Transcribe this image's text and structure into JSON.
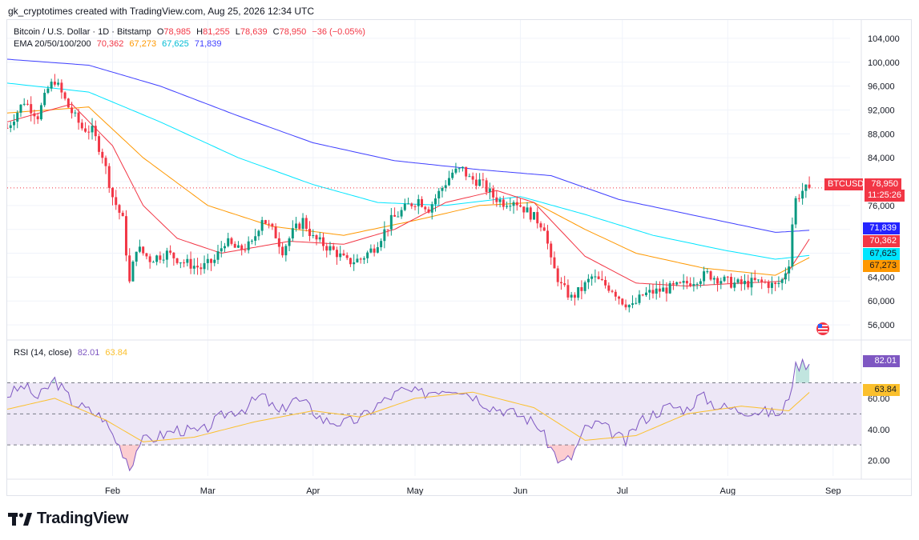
{
  "header": {
    "attribution": "gk_cryptotimes created with TradingView.com, Aug 25, 2026 12:34 UTC"
  },
  "legend": {
    "symbol": "Bitcoin / U.S. Dollar · 1D · Bitstamp",
    "o_label": "O",
    "o_value": "78,985",
    "h_label": "H",
    "h_value": "81,255",
    "l_label": "L",
    "l_value": "78,639",
    "c_label": "C",
    "c_value": "78,950",
    "change": "−36 (−0.05%)",
    "ema_label": "EMA 20/50/100/200",
    "ema20": "70,362",
    "ema50": "67,273",
    "ema100": "67,625",
    "ema200": "71,839",
    "rsi_label": "RSI (14, close)",
    "rsi_value": "82.01",
    "rsi_ma": "63.84"
  },
  "tags": {
    "symbol": "BTCUSD",
    "price": "78,950",
    "countdown": "11:25:26",
    "ema200": "71,839",
    "ema20": "70,362",
    "ema100": "67,625",
    "ema50": "67,273",
    "rsi": "82.01",
    "rsi_ma": "63.84"
  },
  "colors": {
    "up": "#089981",
    "down": "#f23645",
    "ema20": "#f23645",
    "ema50": "#ff9800",
    "ema100": "#00e5ff",
    "ema200": "#3f3fff",
    "rsi": "#7e57c2",
    "rsi_ma": "#fbc02d",
    "rsi_band": "#ede7f6"
  },
  "logo": {
    "text": "TradingView"
  },
  "chart_data": [
    {
      "type": "candlestick",
      "title": "Bitcoin / U.S. Dollar · 1D · Bitstamp",
      "x_ticks": [
        "Feb",
        "Mar",
        "Apr",
        "May",
        "Jun",
        "Jul",
        "Aug",
        "Sep"
      ],
      "y_ticks": [
        "56,000",
        "60,000",
        "64,000",
        "68,000",
        "72,000",
        "76,000",
        "80,000",
        "84,000",
        "88,000",
        "92,000",
        "96,000",
        "100,000",
        "104,000"
      ],
      "ylim": [
        54000,
        106000
      ],
      "grid": true,
      "last_price": 78950,
      "anchors": [
        [
          "2026-01-01",
          89000
        ],
        [
          "2026-01-06",
          93500
        ],
        [
          "2026-01-10",
          91000
        ],
        [
          "2026-01-13",
          95500
        ],
        [
          "2026-01-15",
          97000
        ],
        [
          "2026-01-19",
          92500
        ],
        [
          "2026-01-23",
          89000
        ],
        [
          "2026-01-26",
          88500
        ],
        [
          "2026-01-29",
          84500
        ],
        [
          "2026-02-01",
          77500
        ],
        [
          "2026-02-04",
          73500
        ],
        [
          "2026-02-06",
          63000
        ],
        [
          "2026-02-08",
          69000
        ],
        [
          "2026-02-12",
          67000
        ],
        [
          "2026-02-17",
          68000
        ],
        [
          "2026-02-22",
          66500
        ],
        [
          "2026-02-27",
          65500
        ],
        [
          "2026-03-03",
          66800
        ],
        [
          "2026-03-06",
          70000
        ],
        [
          "2026-03-10",
          68500
        ],
        [
          "2026-03-14",
          69500
        ],
        [
          "2026-03-17",
          74000
        ],
        [
          "2026-03-21",
          71000
        ],
        [
          "2026-03-23",
          68500
        ],
        [
          "2026-03-26",
          71500
        ],
        [
          "2026-03-29",
          73500
        ],
        [
          "2026-04-01",
          70500
        ],
        [
          "2026-04-04",
          69500
        ],
        [
          "2026-04-08",
          68000
        ],
        [
          "2026-04-11",
          66500
        ],
        [
          "2026-04-15",
          67000
        ],
        [
          "2026-04-19",
          69000
        ],
        [
          "2026-04-24",
          73500
        ],
        [
          "2026-04-29",
          76000
        ],
        [
          "2026-05-02",
          77000
        ],
        [
          "2026-05-05",
          75500
        ],
        [
          "2026-05-09",
          79000
        ],
        [
          "2026-05-12",
          81500
        ],
        [
          "2026-05-15",
          82000
        ],
        [
          "2026-05-17",
          80500
        ],
        [
          "2026-05-20",
          80000
        ],
        [
          "2026-05-24",
          77500
        ],
        [
          "2026-05-27",
          76500
        ],
        [
          "2026-05-30",
          77000
        ],
        [
          "2026-06-02",
          75500
        ],
        [
          "2026-06-05",
          74000
        ],
        [
          "2026-06-08",
          72500
        ],
        [
          "2026-06-10",
          66500
        ],
        [
          "2026-06-13",
          62500
        ],
        [
          "2026-06-16",
          60500
        ],
        [
          "2026-06-19",
          62000
        ],
        [
          "2026-06-22",
          64000
        ],
        [
          "2026-06-25",
          63000
        ],
        [
          "2026-06-28",
          62000
        ],
        [
          "2026-07-01",
          60000
        ],
        [
          "2026-07-04",
          59000
        ],
        [
          "2026-07-07",
          61000
        ],
        [
          "2026-07-10",
          61500
        ],
        [
          "2026-07-14",
          62000
        ],
        [
          "2026-07-18",
          62500
        ],
        [
          "2026-07-22",
          63500
        ],
        [
          "2026-07-26",
          64500
        ],
        [
          "2026-07-29",
          63800
        ],
        [
          "2026-08-02",
          63000
        ],
        [
          "2026-08-05",
          62800
        ],
        [
          "2026-08-09",
          63200
        ],
        [
          "2026-08-12",
          63000
        ],
        [
          "2026-08-15",
          62500
        ],
        [
          "2026-08-17",
          63500
        ],
        [
          "2026-08-19",
          66500
        ],
        [
          "2026-08-20",
          73000
        ],
        [
          "2026-08-21",
          77000
        ],
        [
          "2026-08-23",
          78500
        ],
        [
          "2026-08-25",
          78950
        ]
      ],
      "ema20_anchors": [
        [
          "2026-01-01",
          90000
        ],
        [
          "2026-01-20",
          93000
        ],
        [
          "2026-02-01",
          86000
        ],
        [
          "2026-02-10",
          76000
        ],
        [
          "2026-02-20",
          70500
        ],
        [
          "2026-03-05",
          68000
        ],
        [
          "2026-03-25",
          70000
        ],
        [
          "2026-04-10",
          69500
        ],
        [
          "2026-04-25",
          72000
        ],
        [
          "2026-05-10",
          76500
        ],
        [
          "2026-05-25",
          78500
        ],
        [
          "2026-06-05",
          76500
        ],
        [
          "2026-06-20",
          67500
        ],
        [
          "2026-07-05",
          63000
        ],
        [
          "2026-07-20",
          62500
        ],
        [
          "2026-08-05",
          63000
        ],
        [
          "2026-08-17",
          63300
        ],
        [
          "2026-08-25",
          70362
        ]
      ],
      "ema50_anchors": [
        [
          "2026-01-01",
          91500
        ],
        [
          "2026-01-25",
          92500
        ],
        [
          "2026-02-10",
          84000
        ],
        [
          "2026-03-01",
          76000
        ],
        [
          "2026-03-20",
          72500
        ],
        [
          "2026-04-10",
          71000
        ],
        [
          "2026-05-01",
          73500
        ],
        [
          "2026-05-20",
          76000
        ],
        [
          "2026-06-05",
          76500
        ],
        [
          "2026-06-20",
          72000
        ],
        [
          "2026-07-05",
          68000
        ],
        [
          "2026-07-25",
          65500
        ],
        [
          "2026-08-15",
          64300
        ],
        [
          "2026-08-25",
          67273
        ]
      ],
      "ema100_anchors": [
        [
          "2026-01-01",
          96500
        ],
        [
          "2026-01-25",
          95000
        ],
        [
          "2026-02-15",
          90000
        ],
        [
          "2026-03-10",
          84000
        ],
        [
          "2026-04-01",
          79500
        ],
        [
          "2026-04-20",
          76500
        ],
        [
          "2026-05-10",
          76000
        ],
        [
          "2026-06-01",
          77500
        ],
        [
          "2026-06-20",
          74500
        ],
        [
          "2026-07-10",
          71000
        ],
        [
          "2026-07-31",
          68500
        ],
        [
          "2026-08-15",
          67000
        ],
        [
          "2026-08-25",
          67625
        ]
      ],
      "ema200_anchors": [
        [
          "2026-01-01",
          100500
        ],
        [
          "2026-01-25",
          99500
        ],
        [
          "2026-02-15",
          96000
        ],
        [
          "2026-03-10",
          91000
        ],
        [
          "2026-04-01",
          86500
        ],
        [
          "2026-04-25",
          83500
        ],
        [
          "2026-05-20",
          82000
        ],
        [
          "2026-06-10",
          81000
        ],
        [
          "2026-06-30",
          77000
        ],
        [
          "2026-07-25",
          74000
        ],
        [
          "2026-08-15",
          71500
        ],
        [
          "2026-08-25",
          71839
        ]
      ]
    },
    {
      "type": "line",
      "title": "RSI (14, close)",
      "y_ticks": [
        "20.00",
        "40.00",
        "60.00"
      ],
      "ylim": [
        10,
        95
      ],
      "band": [
        30,
        70
      ],
      "mid": 50,
      "rsi_anchors": [
        [
          "2026-01-01",
          62
        ],
        [
          "2026-01-06",
          68
        ],
        [
          "2026-01-10",
          60
        ],
        [
          "2026-01-15",
          72
        ],
        [
          "2026-01-20",
          58
        ],
        [
          "2026-01-25",
          52
        ],
        [
          "2026-01-29",
          48
        ],
        [
          "2026-02-02",
          33
        ],
        [
          "2026-02-05",
          22
        ],
        [
          "2026-02-06",
          15
        ],
        [
          "2026-02-09",
          32
        ],
        [
          "2026-02-14",
          35
        ],
        [
          "2026-02-20",
          40
        ],
        [
          "2026-02-27",
          38
        ],
        [
          "2026-03-06",
          50
        ],
        [
          "2026-03-12",
          54
        ],
        [
          "2026-03-17",
          62
        ],
        [
          "2026-03-22",
          50
        ],
        [
          "2026-03-26",
          60
        ],
        [
          "2026-03-30",
          56
        ],
        [
          "2026-04-04",
          46
        ],
        [
          "2026-04-10",
          44
        ],
        [
          "2026-04-15",
          47
        ],
        [
          "2026-04-20",
          56
        ],
        [
          "2026-04-27",
          65
        ],
        [
          "2026-05-03",
          63
        ],
        [
          "2026-05-08",
          66
        ],
        [
          "2026-05-13",
          67
        ],
        [
          "2026-05-18",
          62
        ],
        [
          "2026-05-23",
          55
        ],
        [
          "2026-05-28",
          52
        ],
        [
          "2026-06-02",
          48
        ],
        [
          "2026-06-06",
          43
        ],
        [
          "2026-06-10",
          28
        ],
        [
          "2026-06-13",
          18
        ],
        [
          "2026-06-16",
          22
        ],
        [
          "2026-06-20",
          40
        ],
        [
          "2026-06-24",
          44
        ],
        [
          "2026-06-28",
          38
        ],
        [
          "2026-07-02",
          32
        ],
        [
          "2026-07-06",
          45
        ],
        [
          "2026-07-10",
          50
        ],
        [
          "2026-07-15",
          55
        ],
        [
          "2026-07-20",
          53
        ],
        [
          "2026-07-24",
          62
        ],
        [
          "2026-07-29",
          55
        ],
        [
          "2026-08-03",
          53
        ],
        [
          "2026-08-08",
          52
        ],
        [
          "2026-08-13",
          51
        ],
        [
          "2026-08-17",
          50
        ],
        [
          "2026-08-19",
          62
        ],
        [
          "2026-08-21",
          80
        ],
        [
          "2026-08-23",
          83
        ],
        [
          "2026-08-25",
          82.01
        ]
      ],
      "ma_anchors": [
        [
          "2026-01-01",
          53
        ],
        [
          "2026-01-15",
          60
        ],
        [
          "2026-01-30",
          46
        ],
        [
          "2026-02-10",
          32
        ],
        [
          "2026-02-25",
          35
        ],
        [
          "2026-03-15",
          45
        ],
        [
          "2026-04-01",
          52
        ],
        [
          "2026-04-15",
          48
        ],
        [
          "2026-05-01",
          60
        ],
        [
          "2026-05-18",
          64
        ],
        [
          "2026-06-05",
          54
        ],
        [
          "2026-06-20",
          33
        ],
        [
          "2026-07-05",
          36
        ],
        [
          "2026-07-20",
          50
        ],
        [
          "2026-08-05",
          55
        ],
        [
          "2026-08-19",
          52
        ],
        [
          "2026-08-25",
          63.84
        ]
      ]
    }
  ]
}
